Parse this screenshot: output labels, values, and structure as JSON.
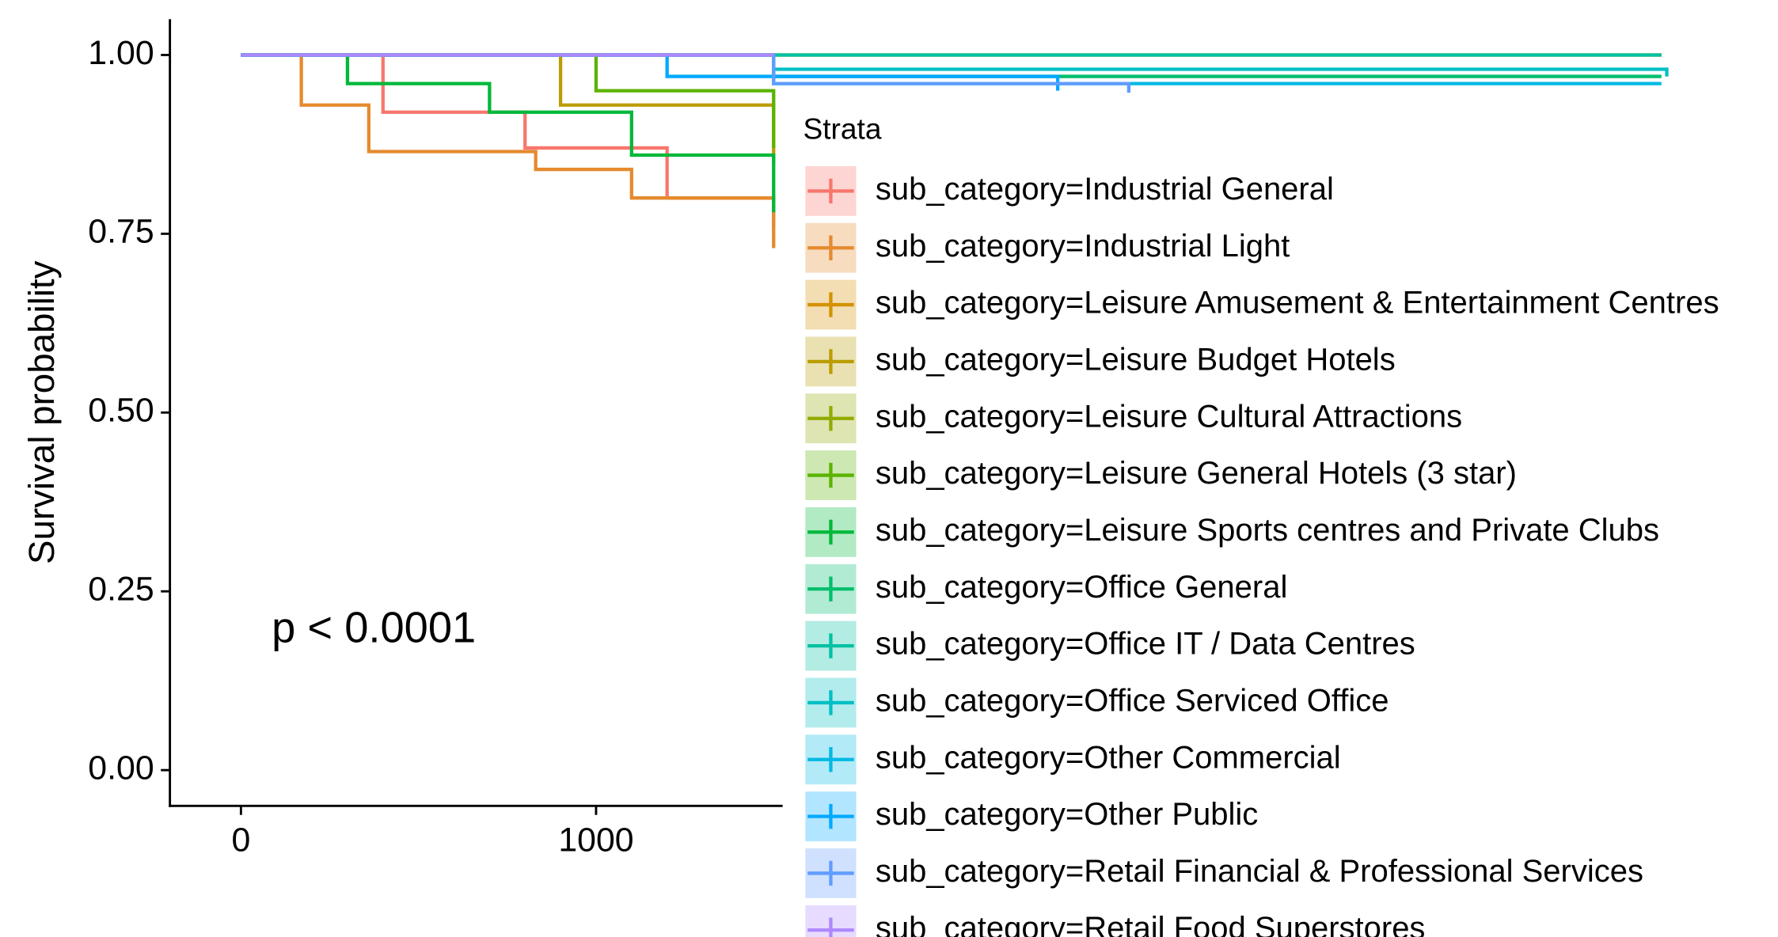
{
  "chart_data": {
    "type": "line",
    "step": true,
    "y_label": "Survival probability",
    "annotation": "p < 0.0001",
    "legend_title": "Strata",
    "xlim": [
      -200,
      4200
    ],
    "ylim": [
      -0.05,
      1.05
    ],
    "xticks": [
      0,
      1000
    ],
    "yticks": [
      {
        "value": 0,
        "label": "0.00"
      },
      {
        "value": 0.25,
        "label": "0.25"
      },
      {
        "value": 0.5,
        "label": "0.50"
      },
      {
        "value": 0.75,
        "label": "0.75"
      },
      {
        "value": 1,
        "label": "1.00"
      }
    ],
    "series": [
      {
        "name": "sub_category=Industrial General",
        "color": "#F8766D",
        "x": [
          0,
          400,
          800,
          1200,
          1500
        ],
        "values": [
          1,
          0.92,
          0.87,
          0.8,
          0.76
        ]
      },
      {
        "name": "sub_category=Industrial Light",
        "color": "#E58A2E",
        "x": [
          0,
          170,
          360,
          830,
          1100,
          1500
        ],
        "values": [
          1,
          0.93,
          0.865,
          0.84,
          0.8,
          0.73
        ]
      },
      {
        "name": "sub_category=Leisure Amusement & Entertainment Centres",
        "color": "#D39200",
        "x": [
          0,
          4000
        ],
        "values": [
          1,
          1
        ]
      },
      {
        "name": "sub_category=Leisure Budget Hotels",
        "color": "#BB9D00",
        "x": [
          0,
          900,
          1500
        ],
        "values": [
          1,
          0.93,
          0.85
        ]
      },
      {
        "name": "sub_category=Leisure Cultural Attractions",
        "color": "#93AA00",
        "x": [
          0,
          4000
        ],
        "values": [
          1,
          1
        ]
      },
      {
        "name": "sub_category=Leisure General Hotels (3 star)",
        "color": "#5BB300",
        "x": [
          0,
          1000,
          1500
        ],
        "values": [
          1,
          0.95,
          0.87
        ]
      },
      {
        "name": "sub_category=Leisure Sports centres and Private Clubs",
        "color": "#00B83A",
        "x": [
          0,
          300,
          700,
          1100,
          1500
        ],
        "values": [
          1,
          0.96,
          0.92,
          0.86,
          0.78
        ]
      },
      {
        "name": "sub_category=Office General",
        "color": "#00BE6C",
        "x": [
          0,
          1500,
          4000
        ],
        "values": [
          1,
          0.97,
          0.97
        ]
      },
      {
        "name": "sub_category=Office IT / Data Centres",
        "color": "#00C1A3",
        "x": [
          0,
          4000
        ],
        "values": [
          1,
          1
        ]
      },
      {
        "name": "sub_category=Office Serviced Office",
        "color": "#00BFC4",
        "x": [
          0,
          1500,
          4015
        ],
        "values": [
          1,
          0.98,
          0.97
        ]
      },
      {
        "name": "sub_category=Other Commercial",
        "color": "#00B9E3",
        "x": [
          0,
          1500,
          4000
        ],
        "values": [
          1,
          0.96,
          0.96
        ]
      },
      {
        "name": "sub_category=Other Public",
        "color": "#00A9FF",
        "x": [
          0,
          1200,
          2300
        ],
        "values": [
          1,
          0.97,
          0.95
        ]
      },
      {
        "name": "sub_category=Retail Financial & Professional Services",
        "color": "#619CFF",
        "x": [
          0,
          1500,
          2500
        ],
        "values": [
          1,
          0.96,
          0.94
        ]
      },
      {
        "name": "sub_category=Retail Food Superstores",
        "color": "#AE87FF",
        "x": [
          0,
          1500
        ],
        "values": [
          1,
          1
        ]
      }
    ]
  }
}
